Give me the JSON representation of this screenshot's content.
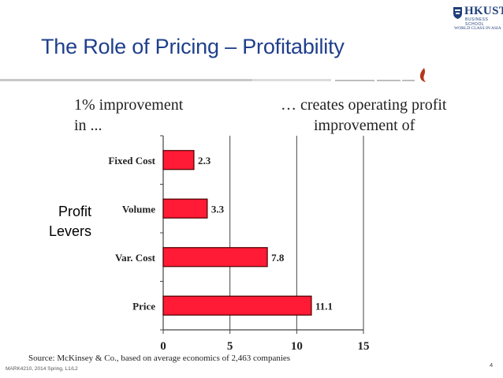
{
  "logo": {
    "name": "HKUST",
    "subtitle": "BUSINESS SCHOOL",
    "tagline": "WORLD CLASS IN ASIA"
  },
  "slide": {
    "title": "The Role of Pricing – Profitability",
    "header_left": [
      "1% improvement",
      "in ..."
    ],
    "header_right": [
      "… creates operating profit",
      "improvement of"
    ],
    "side_label": [
      "Profit",
      "Levers"
    ],
    "source": "Source: McKinsey & Co., based on average economics of 2,463 companies",
    "footer": "MARK4210, 2014 Spring, L1/L2",
    "page_number": "4"
  },
  "colors": {
    "title": "#1f3f8c",
    "bar_fill": "#ff1a35",
    "bar_stroke": "#4a0000",
    "accent_flame": "#b5361c"
  },
  "chart_data": {
    "type": "bar",
    "orientation": "horizontal",
    "categories": [
      "Fixed Cost",
      "Volume",
      "Var. Cost",
      "Price"
    ],
    "values": [
      2.3,
      3.3,
      7.8,
      11.1
    ],
    "data_labels": [
      "2.3",
      "3.3",
      "7.8",
      "11.1"
    ],
    "xlim": [
      0,
      15
    ],
    "xticks": [
      0,
      5,
      10,
      15
    ],
    "xtick_labels": [
      "0",
      "5",
      "10",
      "15"
    ],
    "title": "",
    "xlabel": "",
    "ylabel": "",
    "grid": "vertical"
  }
}
